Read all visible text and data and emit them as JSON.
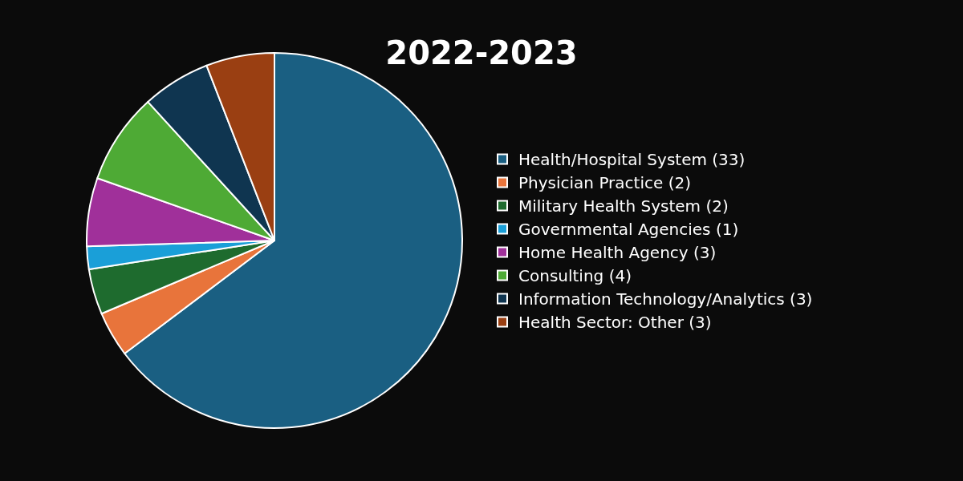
{
  "chart_data": {
    "type": "pie",
    "title": "2022-2023",
    "categories": [
      "Health/Hospital System (33)",
      "Physician Practice (2)",
      "Military Health System (2)",
      "Governmental Agencies (1)",
      "Home Health Agency (3)",
      "Consulting (4)",
      "Information Technology/Analytics (3)",
      "Health Sector: Other (3)"
    ],
    "values": [
      33,
      2,
      2,
      1,
      3,
      4,
      3,
      3
    ],
    "colors": [
      "#1a5f82",
      "#e8743b",
      "#1e6b2e",
      "#1a9fd8",
      "#a0309a",
      "#4eaa35",
      "#0f3550",
      "#9a3f12"
    ],
    "legend": "right"
  }
}
